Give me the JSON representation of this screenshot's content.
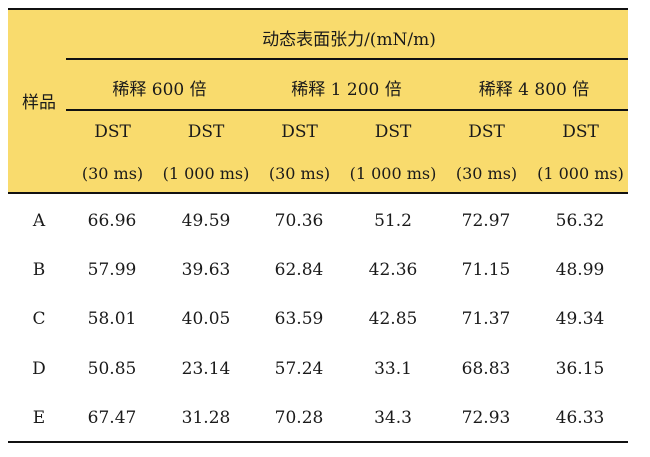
{
  "table": {
    "title": "动态表面张力/(mN/m)",
    "row_header": "样品",
    "dilutions": [
      "稀释 600 倍",
      "稀释 1 200 倍",
      "稀释 4 800 倍"
    ],
    "metric_label": "DST",
    "units": [
      "(30 ms)",
      "(1 000 ms)",
      "(30 ms)",
      "(1 000 ms)",
      "(30 ms)",
      "(1 000 ms)"
    ],
    "rows": [
      {
        "sample": "A",
        "values": [
          "66.96",
          "49.59",
          "70.36",
          "51.2",
          "72.97",
          "56.32"
        ]
      },
      {
        "sample": "B",
        "values": [
          "57.99",
          "39.63",
          "62.84",
          "42.36",
          "71.15",
          "48.99"
        ]
      },
      {
        "sample": "C",
        "values": [
          "58.01",
          "40.05",
          "63.59",
          "42.85",
          "71.37",
          "49.34"
        ]
      },
      {
        "sample": "D",
        "values": [
          "50.85",
          "23.14",
          "57.24",
          "33.1",
          "68.83",
          "36.15"
        ]
      },
      {
        "sample": "E",
        "values": [
          "67.47",
          "31.28",
          "70.28",
          "34.3",
          "72.93",
          "46.33"
        ]
      }
    ]
  },
  "colors": {
    "header_bg": "#f9db6d",
    "rule": "#111111"
  }
}
